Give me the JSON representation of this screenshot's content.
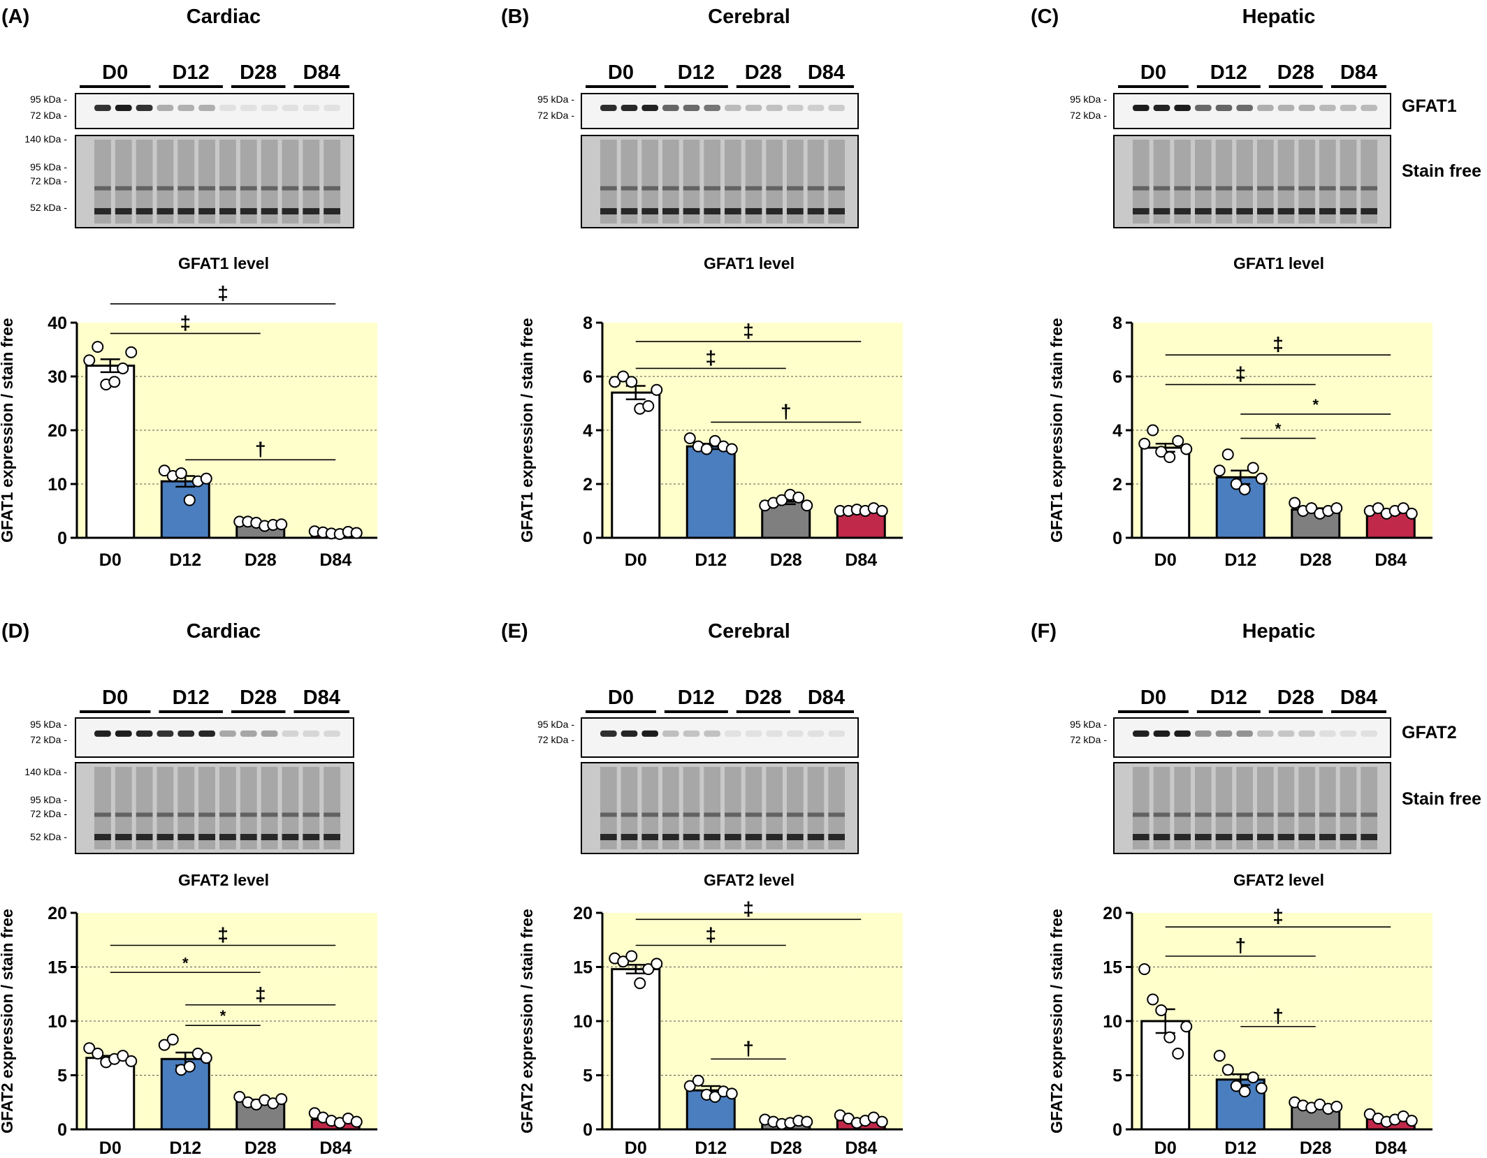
{
  "panels": [
    {
      "letter": "(A)",
      "tissue": "Cardiac",
      "protein": "GFAT1",
      "groups": [
        "D0",
        "D12",
        "D28",
        "D84"
      ],
      "kda_top": [
        "95 kDa -",
        "72 kDa -"
      ],
      "kda_bottom": [
        "140 kDa -",
        "95 kDa -",
        "72 kDa -",
        "52 kDa -"
      ],
      "side_labels": []
    },
    {
      "letter": "(B)",
      "tissue": "Cerebral",
      "protein": "GFAT1",
      "groups": [
        "D0",
        "D12",
        "D28",
        "D84"
      ],
      "kda_top": [
        "95 kDa -",
        "72 kDa -"
      ],
      "kda_bottom": [],
      "side_labels": []
    },
    {
      "letter": "(C)",
      "tissue": "Hepatic",
      "protein": "GFAT1",
      "groups": [
        "D0",
        "D12",
        "D28",
        "D84"
      ],
      "kda_top": [
        "95 kDa -",
        "72 kDa -"
      ],
      "kda_bottom": [],
      "side_labels": [
        "GFAT1",
        "Stain free"
      ]
    },
    {
      "letter": "(D)",
      "tissue": "Cardiac",
      "protein": "GFAT2",
      "groups": [
        "D0",
        "D12",
        "D28",
        "D84"
      ],
      "kda_top": [
        "95 kDa -",
        "72 kDa -"
      ],
      "kda_bottom": [
        "140 kDa -",
        "95 kDa -",
        "72 kDa -",
        "52 kDa -"
      ],
      "side_labels": []
    },
    {
      "letter": "(E)",
      "tissue": "Cerebral",
      "protein": "GFAT2",
      "groups": [
        "D0",
        "D12",
        "D28",
        "D84"
      ],
      "kda_top": [
        "95 kDa -",
        "72 kDa -"
      ],
      "kda_bottom": [],
      "side_labels": []
    },
    {
      "letter": "(F)",
      "tissue": "Hepatic",
      "protein": "GFAT2",
      "groups": [
        "D0",
        "D12",
        "D28",
        "D84"
      ],
      "kda_top": [
        "95 kDa -",
        "72 kDa -"
      ],
      "kda_bottom": [],
      "side_labels": [
        "GFAT2",
        "Stain free"
      ]
    }
  ],
  "colors": {
    "D0": "#ffffff",
    "D12": "#4a7ebf",
    "D28": "#7f7f7f",
    "D84": "#c0294a",
    "plot_bg": "#ffffcc"
  },
  "chart_data": [
    {
      "type": "bar",
      "title": "GFAT1 level",
      "ylabel": "GFAT1 expression / stain free",
      "categories": [
        "D0",
        "D12",
        "D28",
        "D84"
      ],
      "values": [
        32,
        10.5,
        2.5,
        0.6
      ],
      "sem": [
        1.2,
        1.0,
        0.2,
        0.1
      ],
      "ylim": [
        0,
        40
      ],
      "yticks": [
        0,
        10,
        20,
        30,
        40
      ],
      "grid": true,
      "points": [
        [
          33,
          35.5,
          28.5,
          29,
          31.5,
          34.5
        ],
        [
          12.5,
          11.5,
          12,
          7,
          10.5,
          11
        ],
        [
          3,
          3,
          2.8,
          2.2,
          2.4,
          2.5
        ],
        [
          1.2,
          1.0,
          0.8,
          0.7,
          1.1,
          0.9
        ]
      ],
      "significance": [
        {
          "from": "D0",
          "to": "D84",
          "label": "‡",
          "y": 43.5
        },
        {
          "from": "D0",
          "to": "D28",
          "label": "‡",
          "y": 38
        },
        {
          "from": "D12",
          "to": "D84",
          "label": "†",
          "y": 14.5
        }
      ]
    },
    {
      "type": "bar",
      "title": "GFAT1 level",
      "ylabel": "GFAT1 expression / stain free",
      "categories": [
        "D0",
        "D12",
        "D28",
        "D84"
      ],
      "values": [
        5.4,
        3.4,
        1.35,
        1.0
      ],
      "sem": [
        0.25,
        0.1,
        0.1,
        0.05
      ],
      "ylim": [
        0,
        8
      ],
      "yticks": [
        0,
        2,
        4,
        6,
        8
      ],
      "grid": true,
      "points": [
        [
          5.8,
          6.0,
          5.8,
          4.8,
          4.9,
          5.5
        ],
        [
          3.7,
          3.4,
          3.3,
          3.6,
          3.4,
          3.3
        ],
        [
          1.2,
          1.3,
          1.4,
          1.6,
          1.5,
          1.2
        ],
        [
          1.0,
          1.0,
          1.05,
          1.0,
          1.1,
          1.0
        ]
      ],
      "significance": [
        {
          "from": "D0",
          "to": "D84",
          "label": "‡",
          "y": 7.3
        },
        {
          "from": "D0",
          "to": "D28",
          "label": "‡",
          "y": 6.3
        },
        {
          "from": "D12",
          "to": "D84",
          "label": "†",
          "y": 4.3
        }
      ]
    },
    {
      "type": "bar",
      "title": "GFAT1 level",
      "ylabel": "GFAT1 expression / stain free",
      "categories": [
        "D0",
        "D12",
        "D28",
        "D84"
      ],
      "values": [
        3.35,
        2.25,
        1.05,
        0.95
      ],
      "sem": [
        0.15,
        0.25,
        0.05,
        0.05
      ],
      "ylim": [
        0,
        8
      ],
      "yticks": [
        0,
        2,
        4,
        6,
        8
      ],
      "grid": true,
      "points": [
        [
          3.5,
          4.0,
          3.2,
          3.0,
          3.6,
          3.3
        ],
        [
          2.5,
          3.1,
          2.0,
          1.8,
          2.6,
          2.2
        ],
        [
          1.3,
          1.0,
          1.1,
          0.9,
          1.0,
          1.1
        ],
        [
          1.0,
          1.1,
          0.9,
          1.0,
          1.1,
          0.9
        ]
      ],
      "significance": [
        {
          "from": "D0",
          "to": "D84",
          "label": "‡",
          "y": 6.8
        },
        {
          "from": "D0",
          "to": "D28",
          "label": "‡",
          "y": 5.7
        },
        {
          "from": "D12",
          "to": "D84",
          "label": "*",
          "y": 4.6
        },
        {
          "from": "D12",
          "to": "D28",
          "label": "*",
          "y": 3.7
        }
      ]
    },
    {
      "type": "bar",
      "title": "GFAT2 level",
      "ylabel": "GFAT2 expression / stain free",
      "categories": [
        "D0",
        "D12",
        "D28",
        "D84"
      ],
      "values": [
        6.6,
        6.5,
        2.6,
        0.9
      ],
      "sem": [
        0.2,
        0.6,
        0.15,
        0.1
      ],
      "ylim": [
        0,
        20
      ],
      "yticks": [
        0,
        5,
        10,
        15,
        20
      ],
      "grid": true,
      "points": [
        [
          7.5,
          7.0,
          6.2,
          6.5,
          6.8,
          6.3
        ],
        [
          7.8,
          8.3,
          5.5,
          5.8,
          7.0,
          6.6
        ],
        [
          3.0,
          2.5,
          2.3,
          2.7,
          2.4,
          2.8
        ],
        [
          1.5,
          1.1,
          0.8,
          0.6,
          1.0,
          0.7
        ]
      ],
      "significance": [
        {
          "from": "D0",
          "to": "D84",
          "label": "‡",
          "y": 17
        },
        {
          "from": "D0",
          "to": "D28",
          "label": "*",
          "y": 14.5
        },
        {
          "from": "D12",
          "to": "D84",
          "label": "‡",
          "y": 11.5
        },
        {
          "from": "D12",
          "to": "D28",
          "label": "*",
          "y": 9.6
        }
      ]
    },
    {
      "type": "bar",
      "title": "GFAT2 level",
      "ylabel": "GFAT2 expression / stain free",
      "categories": [
        "D0",
        "D12",
        "D28",
        "D84"
      ],
      "values": [
        14.8,
        3.6,
        0.7,
        0.85
      ],
      "sem": [
        0.4,
        0.4,
        0.1,
        0.1
      ],
      "ylim": [
        0,
        20
      ],
      "yticks": [
        0,
        5,
        10,
        15,
        20
      ],
      "grid": true,
      "points": [
        [
          15.8,
          15.5,
          16.0,
          13.5,
          14.8,
          15.3
        ],
        [
          4.0,
          4.5,
          3.2,
          3.0,
          3.5,
          3.3
        ],
        [
          0.9,
          0.7,
          0.5,
          0.6,
          0.8,
          0.7
        ],
        [
          1.3,
          1.0,
          0.6,
          0.8,
          1.1,
          0.7
        ]
      ],
      "significance": [
        {
          "from": "D0",
          "to": "D84",
          "label": "‡",
          "y": 19.4
        },
        {
          "from": "D0",
          "to": "D28",
          "label": "‡",
          "y": 17
        },
        {
          "from": "D12",
          "to": "D28",
          "label": "†",
          "y": 6.5
        }
      ]
    },
    {
      "type": "bar",
      "title": "GFAT2 level",
      "ylabel": "GFAT2 expression / stain free",
      "categories": [
        "D0",
        "D12",
        "D28",
        "D84"
      ],
      "values": [
        10,
        4.6,
        2.2,
        1.0
      ],
      "sem": [
        1.1,
        0.5,
        0.1,
        0.1
      ],
      "ylim": [
        0,
        20
      ],
      "yticks": [
        0,
        5,
        10,
        15,
        20
      ],
      "grid": true,
      "points": [
        [
          14.8,
          12.0,
          11.0,
          8.5,
          7.0,
          9.5
        ],
        [
          6.8,
          5.5,
          4.0,
          3.5,
          4.8,
          3.8
        ],
        [
          2.5,
          2.2,
          2.0,
          2.3,
          1.9,
          2.1
        ],
        [
          1.4,
          1.0,
          0.7,
          0.9,
          1.2,
          0.8
        ]
      ],
      "significance": [
        {
          "from": "D0",
          "to": "D84",
          "label": "‡",
          "y": 18.7
        },
        {
          "from": "D0",
          "to": "D28",
          "label": "†",
          "y": 16
        },
        {
          "from": "D12",
          "to": "D28",
          "label": "†",
          "y": 9.5
        }
      ]
    }
  ]
}
